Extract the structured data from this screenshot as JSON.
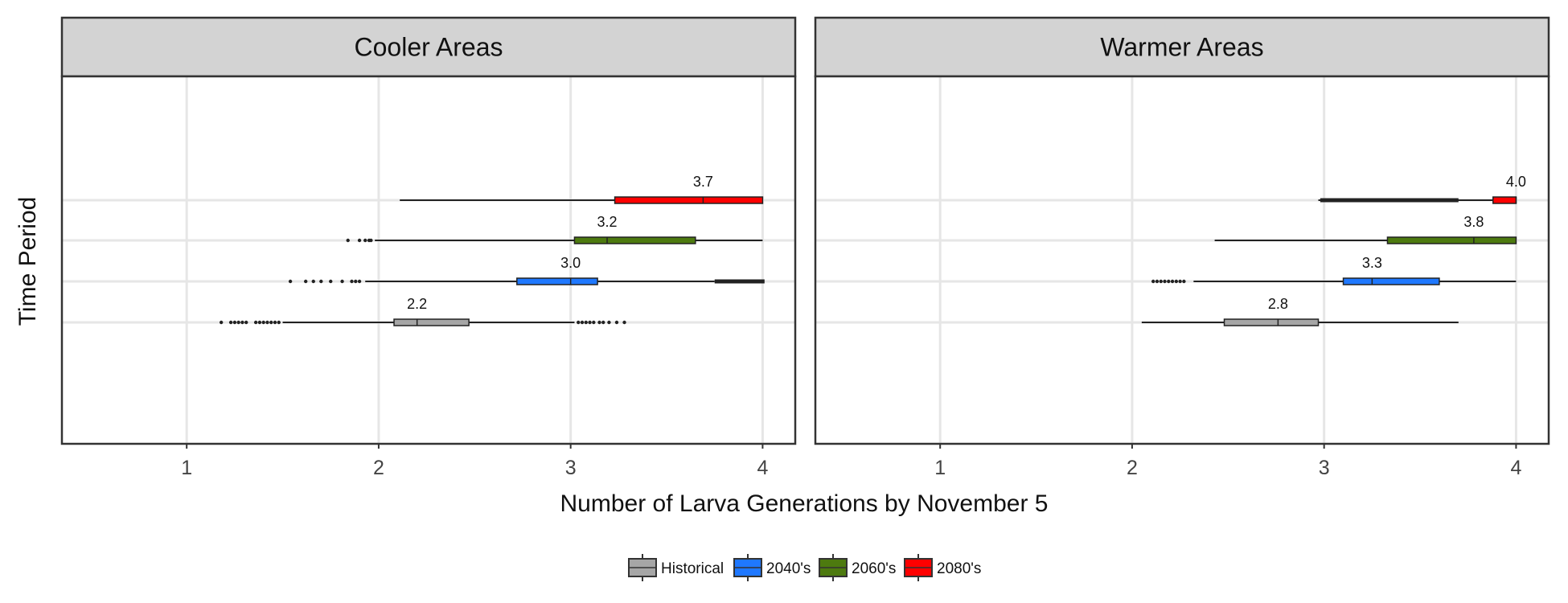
{
  "chart_data": {
    "type": "boxplot",
    "xlabel": "Number of Larva Generations by November 5",
    "ylabel": "Time Period",
    "xlim": [
      0.35,
      4.17
    ],
    "x_ticks": [
      1,
      2,
      3,
      4
    ],
    "grid": true,
    "legend_position": "bottom",
    "series": [
      {
        "name": "Historical",
        "color": "#a6a6a6"
      },
      {
        "name": "2040's",
        "color": "#1f78ff"
      },
      {
        "name": "2060's",
        "color": "#4d7a0f"
      },
      {
        "name": "2080's",
        "color": "#ff0000"
      }
    ],
    "panels": [
      {
        "title": "Cooler Areas",
        "boxes": [
          {
            "series": "Historical",
            "whisker_low": 1.5,
            "q1": 2.08,
            "median": 2.2,
            "q3": 2.47,
            "whisker_high": 3.02,
            "outliers": [
              1.18,
              1.23,
              1.25,
              1.27,
              1.29,
              1.31,
              1.36,
              1.38,
              1.4,
              1.42,
              1.44,
              1.46,
              1.48,
              3.04,
              3.06,
              3.08,
              3.1,
              3.12,
              3.15,
              3.17,
              3.2,
              3.24,
              3.28
            ],
            "label": "2.2"
          },
          {
            "series": "2040's",
            "whisker_low": 1.93,
            "q1": 2.72,
            "median": 3.0,
            "q3": 3.14,
            "whisker_high": 3.75,
            "outliers": [
              1.54,
              1.62,
              1.66,
              1.7,
              1.75,
              1.81,
              1.86,
              1.88,
              1.9
            ],
            "outliers_dense": [
              3.75,
              4.01
            ],
            "label": "3.0"
          },
          {
            "series": "2060's",
            "whisker_low": 1.98,
            "q1": 3.02,
            "median": 3.19,
            "q3": 3.65,
            "whisker_high": 4.0,
            "outliers": [
              1.84,
              1.9,
              1.93,
              1.95,
              1.96
            ],
            "label": "3.2"
          },
          {
            "series": "2080's",
            "whisker_low": 2.11,
            "q1": 3.23,
            "median": 3.69,
            "q3": 4.0,
            "whisker_high": 4.0,
            "outliers": [],
            "label": "3.7"
          }
        ]
      },
      {
        "title": "Warmer Areas",
        "boxes": [
          {
            "series": "Historical",
            "whisker_low": 2.05,
            "q1": 2.48,
            "median": 2.76,
            "q3": 2.97,
            "whisker_high": 3.7,
            "outliers": [],
            "label": "2.8"
          },
          {
            "series": "2040's",
            "whisker_low": 2.32,
            "q1": 3.1,
            "median": 3.25,
            "q3": 3.6,
            "whisker_high": 4.0,
            "outliers": [
              2.11,
              2.13,
              2.15,
              2.17,
              2.19,
              2.21,
              2.23,
              2.25,
              2.27
            ],
            "label": "3.3"
          },
          {
            "series": "2060's",
            "whisker_low": 2.43,
            "q1": 3.33,
            "median": 3.78,
            "q3": 4.0,
            "whisker_high": 4.0,
            "outliers": [],
            "label": "3.8"
          },
          {
            "series": "2080's",
            "whisker_low": 2.97,
            "q1": 3.88,
            "median": 4.0,
            "q3": 4.0,
            "whisker_high": 4.0,
            "outliers": [],
            "outliers_dense": [
              2.98,
              3.7
            ],
            "label": "4.0"
          }
        ]
      }
    ]
  }
}
